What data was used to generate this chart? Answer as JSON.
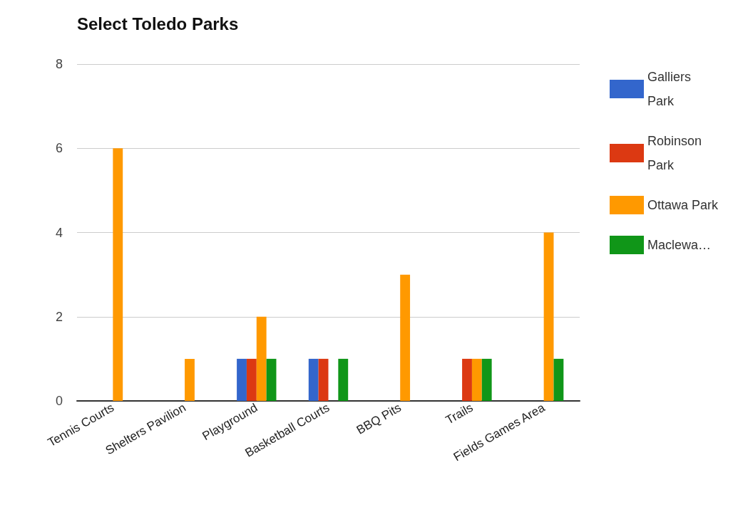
{
  "chart_data": {
    "type": "bar",
    "title": "Select Toledo Parks",
    "categories": [
      "Tennis Courts",
      "Shelters Pavilion",
      "Playground",
      "Basketball Courts",
      "BBQ Pits",
      "Trails",
      "Fields Games Area"
    ],
    "series": [
      {
        "name": "Galliers Park",
        "color": "#3366cc",
        "values": [
          0,
          0,
          1,
          1,
          0,
          0,
          0
        ]
      },
      {
        "name": "Robinson Park",
        "color": "#dc3912",
        "values": [
          0,
          0,
          1,
          1,
          0,
          1,
          0
        ]
      },
      {
        "name": "Ottawa Park",
        "color": "#ff9900",
        "values": [
          6,
          1,
          2,
          0,
          3,
          1,
          4
        ]
      },
      {
        "name": "Maclewa…",
        "color": "#109618",
        "values": [
          0,
          0,
          1,
          1,
          0,
          1,
          1
        ]
      }
    ],
    "ylim": [
      0,
      8
    ],
    "yticks": [
      0,
      2,
      4,
      6,
      8
    ],
    "grid": "y",
    "legend": "top right"
  }
}
